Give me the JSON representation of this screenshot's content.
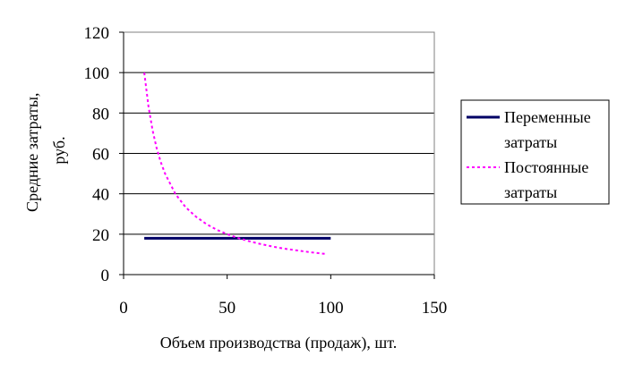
{
  "chart_data": {
    "type": "line",
    "xlabel": "Объем производства (продаж), шт.",
    "ylabel_lines": [
      "Средние затраты,",
      "руб."
    ],
    "xlim": [
      0,
      150
    ],
    "ylim": [
      0,
      120
    ],
    "x_ticks": [
      "0",
      "50",
      "100",
      "150"
    ],
    "y_ticks": [
      "0",
      "20",
      "40",
      "60",
      "80",
      "100",
      "120"
    ],
    "grid": "horizontal",
    "legend_position": "right",
    "series": [
      {
        "name_lines": [
          "Переменные",
          "затраты"
        ],
        "color": "#000066",
        "style": "solid",
        "x": [
          10,
          100
        ],
        "y": [
          18,
          18
        ]
      },
      {
        "name_lines": [
          "Постоянные",
          "затраты"
        ],
        "color": "#ff00ff",
        "style": "dashed",
        "x": [
          10,
          12,
          14,
          16,
          18,
          20,
          25,
          30,
          35,
          40,
          45,
          50,
          55,
          60,
          65,
          70,
          75,
          80,
          85,
          90,
          95,
          98
        ],
        "y": [
          100,
          83.3,
          71.4,
          62.5,
          55.6,
          50,
          40,
          33.3,
          28.6,
          25,
          22.2,
          20,
          18.2,
          16.7,
          15.4,
          14.3,
          13.3,
          12.5,
          11.8,
          11.1,
          10.5,
          10.2
        ]
      }
    ]
  }
}
